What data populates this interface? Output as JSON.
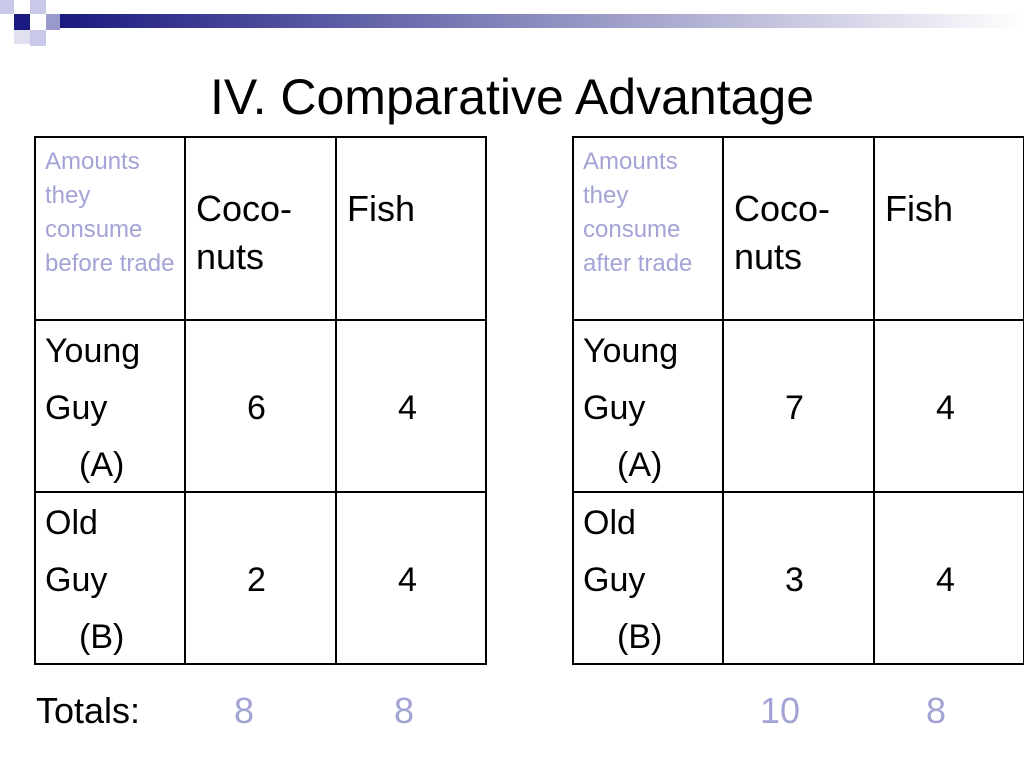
{
  "title": "IV. Comparative Advantage",
  "tables": [
    {
      "header": [
        "Amounts they consume before trade",
        "Coco-nuts",
        "Fish"
      ],
      "rows": [
        {
          "label_lines": [
            "Young",
            "Guy",
            "(A)"
          ],
          "cells": [
            6,
            4
          ]
        },
        {
          "label_lines": [
            "Old",
            "Guy",
            "(B)"
          ],
          "cells": [
            2,
            4
          ]
        }
      ],
      "totals": [
        8,
        8
      ]
    },
    {
      "header": [
        "Amounts they consume after trade",
        "Coco-nuts",
        "Fish"
      ],
      "rows": [
        {
          "label_lines": [
            "Young",
            "Guy",
            "(A)"
          ],
          "cells": [
            7,
            4
          ]
        },
        {
          "label_lines": [
            "Old",
            "Guy",
            "(B)"
          ],
          "cells": [
            3,
            4
          ]
        }
      ],
      "totals": [
        10,
        8
      ]
    }
  ],
  "totals_label": "Totals:"
}
